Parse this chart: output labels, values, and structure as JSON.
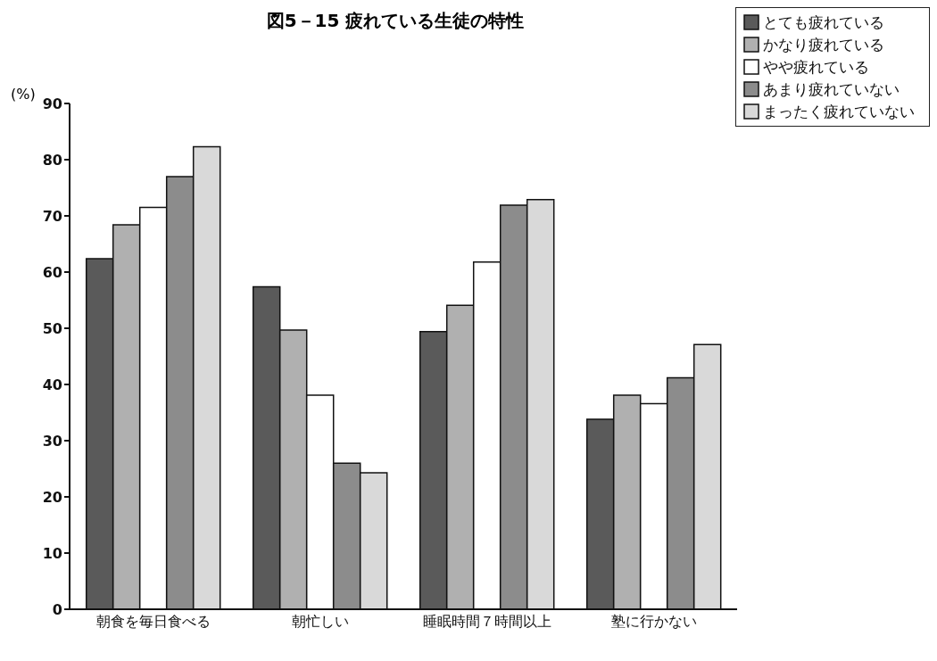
{
  "chart_data": {
    "type": "bar",
    "title": "図5－15 疲れている生徒の特性",
    "ylabel": "(%)",
    "categories": [
      "朝食を毎日食べる",
      "朝忙しい",
      "睡眠時間７時間以上",
      "塾に行かない"
    ],
    "series": [
      {
        "name": "とても疲れている",
        "color": "#5a5a5a",
        "values": [
          62.4,
          57.4,
          49.4,
          33.8
        ]
      },
      {
        "name": "かなり疲れている",
        "color": "#b0b0b0",
        "values": [
          68.4,
          49.7,
          54.1,
          38.1
        ]
      },
      {
        "name": "やや疲れている",
        "color": "#ffffff",
        "values": [
          71.5,
          38.1,
          61.8,
          36.6
        ]
      },
      {
        "name": "あまり疲れていない",
        "color": "#8c8c8c",
        "values": [
          77.0,
          26.0,
          71.9,
          41.2
        ]
      },
      {
        "name": "まったく疲れていない",
        "color": "#d9d9d9",
        "values": [
          82.3,
          24.3,
          72.9,
          47.1
        ]
      }
    ],
    "ylim": [
      0,
      90
    ],
    "yticks": [
      0,
      10,
      20,
      30,
      40,
      50,
      60,
      70,
      80,
      90
    ],
    "grid": false,
    "legend": "top right"
  }
}
